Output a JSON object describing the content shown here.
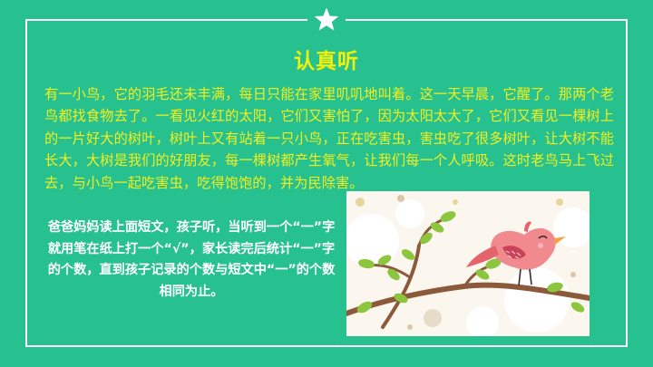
{
  "title": "认真听",
  "story": "有一小鸟，它的羽毛还未丰满，每日只能在家里叽叽地叫着。这一天早晨，它醒了。那两个老鸟都找食物去了。一看见火红的太阳，它们又害怕了，因为太阳太大了，它们又看见一棵树上的一片好大的树叶，树叶上又有站着一只小鸟，正在吃害虫，害虫吃了很多树叶，让大树不能长大，大树是我们的好朋友，每一棵树都产生氧气，让我们每一个人呼吸。这时老鸟马上飞过去，与小鸟一起吃害虫，吃得饱饱的，并为民除害。",
  "instruction": "爸爸妈妈读上面短文，孩子听，当听到一个“一”字就用笔在纸上打一个“√”，家长读完后统计“一”字的个数，直到孩子记录的个数与短文中“一”的个数相同为止。",
  "icons": {
    "top": "star-icon",
    "illustration": "bird-on-branch-illustration"
  },
  "colors": {
    "background": "#27c08f",
    "frame": "#ffffff",
    "title": "#f4f10a",
    "story_text": "#f2ef1f",
    "instruction_text": "#ffffff",
    "bird": "#f08a8e"
  }
}
